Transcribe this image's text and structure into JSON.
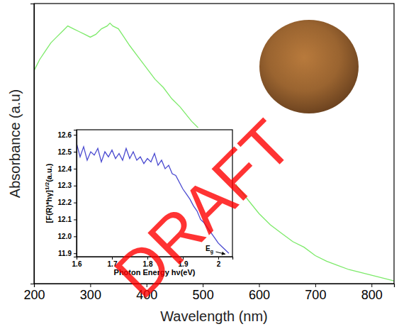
{
  "chart_data": [
    {
      "type": "line",
      "xlabel": "Wavelength (nm)",
      "ylabel": "Absorbance (a.u)",
      "xlim": [
        200,
        840
      ],
      "xticks": [
        200,
        300,
        400,
        500,
        600,
        700,
        800
      ],
      "ylim": [
        0,
        1
      ],
      "yticks": [],
      "tick_labels": "x",
      "color": "#7dea6a",
      "x": [
        200,
        205,
        210,
        220,
        230,
        240,
        250,
        260,
        270,
        280,
        290,
        300,
        310,
        320,
        330,
        335,
        340,
        350,
        360,
        370,
        385,
        400,
        415,
        430,
        445,
        460,
        480,
        500,
        515,
        530,
        545,
        560,
        580,
        600,
        620,
        640,
        660,
        680,
        700,
        720,
        740,
        760,
        780,
        800,
        820,
        840
      ],
      "values": [
        0.76,
        0.78,
        0.8,
        0.83,
        0.86,
        0.88,
        0.9,
        0.92,
        0.91,
        0.9,
        0.89,
        0.88,
        0.89,
        0.91,
        0.92,
        0.93,
        0.92,
        0.91,
        0.88,
        0.85,
        0.81,
        0.77,
        0.73,
        0.7,
        0.66,
        0.63,
        0.58,
        0.54,
        0.5,
        0.47,
        0.42,
        0.35,
        0.3,
        0.25,
        0.21,
        0.18,
        0.15,
        0.13,
        0.1,
        0.08,
        0.065,
        0.05,
        0.04,
        0.03,
        0.02,
        0.01
      ],
      "annotations": [
        {
          "text": "DRAFT",
          "color": "#ff0000"
        }
      ]
    },
    {
      "type": "line",
      "xlabel": "Photon Energy hν(eV)",
      "ylabel": [
        "[F(R)*hγ]",
        "1/2",
        "(a.u.)"
      ],
      "xlim": [
        1.6,
        2.04
      ],
      "xticks": [
        1.6,
        1.7,
        1.8,
        1.9,
        2.0
      ],
      "ylim": [
        11.88,
        12.63
      ],
      "yticks": [
        11.9,
        {
          "value": 12,
          "label": "12.0"
        },
        12.1,
        12.2,
        12.3,
        12.4,
        12.5,
        12.6
      ],
      "color": "#4a4ad0",
      "x": [
        1.6,
        1.61,
        1.62,
        1.63,
        1.64,
        1.65,
        1.66,
        1.67,
        1.68,
        1.69,
        1.7,
        1.71,
        1.72,
        1.73,
        1.74,
        1.75,
        1.76,
        1.77,
        1.78,
        1.79,
        1.8,
        1.81,
        1.82,
        1.83,
        1.84,
        1.85,
        1.86,
        1.87,
        1.88,
        1.89,
        1.9,
        1.91,
        1.92,
        1.93,
        1.94,
        1.95,
        1.96,
        1.97,
        1.98,
        1.99,
        2.0,
        2.01,
        2.02,
        2.03
      ],
      "values": [
        12.55,
        12.47,
        12.53,
        12.45,
        12.5,
        12.48,
        12.52,
        12.44,
        12.5,
        12.47,
        12.51,
        12.46,
        12.49,
        12.45,
        12.52,
        12.46,
        12.5,
        12.45,
        12.47,
        12.43,
        12.46,
        12.44,
        12.49,
        12.42,
        12.45,
        12.4,
        12.42,
        12.37,
        12.36,
        12.32,
        12.28,
        12.25,
        12.22,
        12.18,
        12.15,
        12.1,
        12.08,
        12.05,
        12.02,
        11.99,
        11.96,
        11.94,
        11.92,
        11.9
      ],
      "annotations": [
        {
          "text": "E",
          "subscript": "g"
        }
      ]
    }
  ]
}
